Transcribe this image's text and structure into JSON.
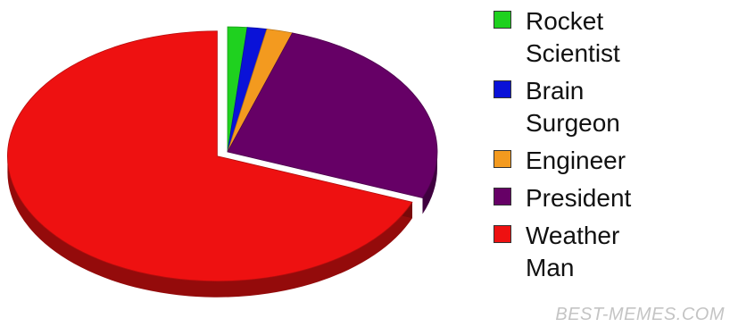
{
  "chart_data": {
    "type": "pie",
    "title": "",
    "series": [
      {
        "name": "Rocket Scientist",
        "value": 1.5,
        "color": "#1fd11f"
      },
      {
        "name": "Brain Surgeon",
        "value": 1.5,
        "color": "#0a12d8"
      },
      {
        "name": "Engineer",
        "value": 2.0,
        "color": "#f39a1f"
      },
      {
        "name": "President",
        "value": 26.0,
        "color": "#660066"
      },
      {
        "name": "Weather Man",
        "value": 69.0,
        "color": "#ee1111"
      }
    ],
    "legend_position": "right",
    "style": "3d",
    "exploded": "Weather Man"
  },
  "legend_labels": {
    "rocket_scientist": "Rocket\nScientist",
    "brain_surgeon": "Brain\nSurgeon",
    "engineer": "Engineer",
    "president": "President",
    "weather_man": "Weather\nMan"
  },
  "watermark": "BEST-MEMES.COM"
}
